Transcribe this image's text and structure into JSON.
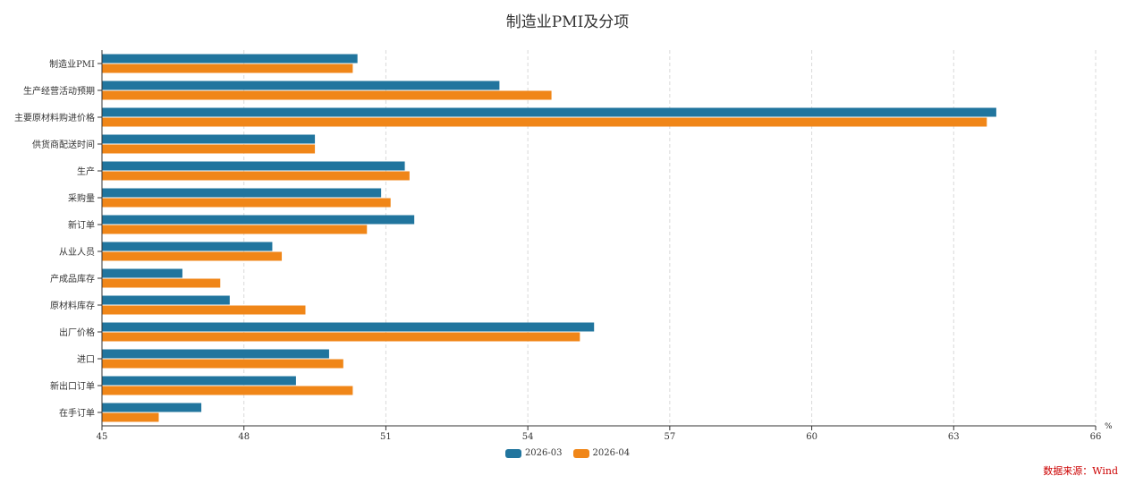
{
  "chart_data": {
    "type": "bar",
    "orientation": "horizontal",
    "title": "制造业PMI及分项",
    "categories": [
      "制造业PMI",
      "生产经营活动预期",
      "主要原材料购进价格",
      "供货商配送时间",
      "生产",
      "采购量",
      "新订单",
      "从业人员",
      "产成品库存",
      "原材料库存",
      "出厂价格",
      "进口",
      "新出口订单",
      "在手订单"
    ],
    "series": [
      {
        "name": "2026-03",
        "color": "#21759e",
        "values": [
          50.4,
          53.4,
          63.9,
          49.5,
          51.4,
          50.9,
          51.6,
          48.6,
          46.7,
          47.7,
          55.4,
          49.8,
          49.1,
          47.1
        ]
      },
      {
        "name": "2026-04",
        "color": "#f08618",
        "values": [
          50.3,
          54.5,
          63.7,
          49.5,
          51.5,
          51.1,
          50.6,
          48.8,
          47.5,
          49.3,
          55.1,
          50.1,
          50.3,
          46.2
        ]
      }
    ],
    "xlim": [
      45,
      66
    ],
    "xticks": [
      "45",
      "48",
      "51",
      "54",
      "57",
      "60",
      "63",
      "66"
    ],
    "xunit": "%",
    "grid": "vertical-dashed",
    "legend_position": "bottom"
  },
  "source_note": "数据来源：Wind"
}
